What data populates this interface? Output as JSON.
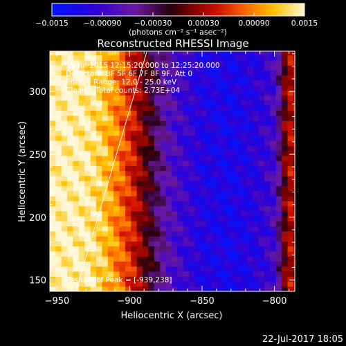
{
  "chart_data": {
    "type": "heatmap",
    "title": "Reconstructed RHESSI Image",
    "xlabel": "Heliocentric X (arcsec)",
    "ylabel": "Heliocentric Y (arcsec)",
    "xlim": [
      -955,
      -786
    ],
    "ylim": [
      141,
      332
    ],
    "x_ticks": [
      -950,
      -900,
      -850,
      -800
    ],
    "y_ticks": [
      150,
      200,
      250,
      300
    ],
    "colorbar": {
      "unit_label": "(photons cm⁻² s⁻¹ asec⁻²)",
      "ticks": [
        "-0.0015",
        "-0.00090",
        "-0.00030",
        "0.00030",
        "0.00090",
        "0.0015"
      ],
      "min": -0.0015,
      "max": 0.0015
    },
    "info": [
      "15-Jul-2015 12:15:20.000 to 12:25:20.000",
      "Detectors: 3F 5F 6F 7F 8F 9F, Att 0",
      "Energy Range: 12.0 - 25.0 keV",
      "Clean    Total counts: 2.73E+04"
    ],
    "peak_label": "Position of Peak = [-939,238]",
    "peak": {
      "x": -939,
      "y": 238
    },
    "limb_line": {
      "x1": -937,
      "y1": 141,
      "x2": -888,
      "y2": 332
    },
    "field_profile": {
      "x": [
        -955,
        -940,
        -928,
        -918,
        -906,
        -898,
        -892,
        -886,
        -880,
        -872,
        -862,
        -850,
        -830,
        -810,
        -800,
        -795,
        -791,
        -786
      ],
      "value": [
        0.00145,
        0.00145,
        0.0014,
        0.0012,
        0.0008,
        0.0005,
        0.0002,
        -0.0001,
        -0.0004,
        -0.0007,
        -0.0009,
        -0.0011,
        -0.0012,
        -0.001,
        -0.0008,
        -0.0002,
        0.0004,
        0.0003
      ]
    }
  },
  "footer": {
    "date": "22-Jul-2017 18:05"
  }
}
